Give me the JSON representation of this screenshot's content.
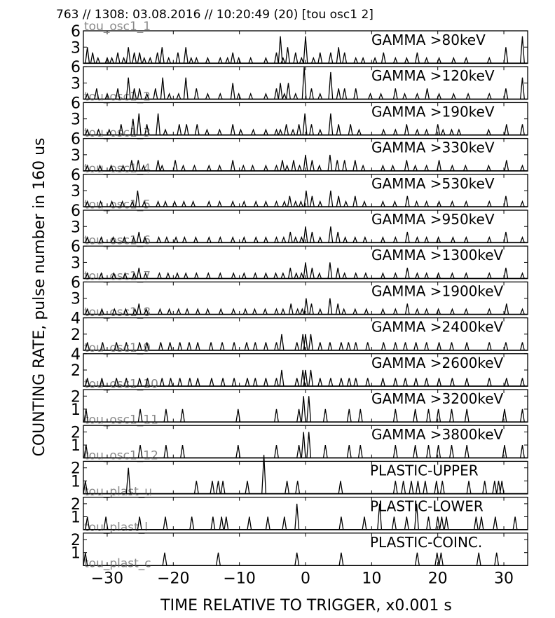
{
  "chart_data": {
    "type": "line",
    "title": "763 // 1308:   03.08.2016 // 10:20:49 (20)  [tou osc1 2]",
    "ylabel": "COUNTING RATE,    pulse number in 160 us",
    "xlabel": "TIME RELATIVE TO TRIGGER,   x0.001 s",
    "xlim": [
      -33.6,
      33.6
    ],
    "xticks": [
      -30,
      -20,
      -10,
      0,
      10,
      20,
      30
    ],
    "xtick_labels": [
      "−30",
      "−20",
      "−10",
      "0",
      "10",
      "20",
      "30"
    ],
    "grid": false,
    "panels": [
      {
        "id": "tou_osc1_1",
        "label": "GAMMA >80keV",
        "ylim": [
          0,
          6
        ],
        "yticks": [
          3,
          6
        ],
        "x": [
          -33,
          -32.2,
          -31.4,
          -30,
          -29.3,
          -28.4,
          -27.5,
          -26.8,
          -25.9,
          -25.1,
          -24.4,
          -23.5,
          -22.4,
          -21.7,
          -20.7,
          -19.3,
          -18.1,
          -17.3,
          -16.5,
          -14.8,
          -12.9,
          -11.8,
          -11.0,
          -10.1,
          -8.3,
          -6.0,
          -4.4,
          -3.8,
          -3.4,
          -2.7,
          -1.5,
          -0.6,
          0,
          1.2,
          2.2,
          3.8,
          5.0,
          5.9,
          7.6,
          8.7,
          10.5,
          11.8,
          13.6,
          15.3,
          16.9,
          18.3,
          20.2,
          22.4,
          24.3,
          27.8,
          30.3,
          32.8
        ],
        "y": [
          3,
          2,
          1,
          1,
          1,
          2,
          1,
          3,
          2,
          2,
          1,
          1,
          2,
          3,
          1,
          2,
          3,
          1,
          1,
          1,
          1,
          1,
          2,
          1,
          1,
          1,
          2,
          5,
          1,
          3,
          2,
          1,
          5,
          1,
          2,
          2,
          3,
          2,
          1,
          1,
          1,
          2,
          1,
          1,
          2,
          1,
          1,
          1,
          1,
          1,
          3,
          5
        ]
      },
      {
        "id": "tou_osc1_2",
        "label": "GAMMA >120keV",
        "ylim": [
          0,
          6
        ],
        "yticks": [
          3,
          6
        ],
        "x": [
          -33,
          -31.6,
          -30,
          -28.4,
          -26.8,
          -25.9,
          -25.1,
          -24.0,
          -22.7,
          -21.6,
          -20.6,
          -19.2,
          -18.1,
          -16.5,
          -14.8,
          -12.9,
          -11.0,
          -10.1,
          -8.3,
          -6.0,
          -4.4,
          -3.8,
          -3.2,
          -2.6,
          -1.5,
          -0.2,
          0.9,
          2.2,
          3.8,
          5.0,
          5.9,
          7.6,
          9.8,
          11.4,
          13.6,
          15.0,
          16.9,
          18.4,
          20.2,
          22.4,
          24.6,
          27.8,
          30.3,
          32.8
        ],
        "y": [
          1,
          2,
          1,
          2,
          4,
          2,
          2,
          1,
          2,
          4,
          1,
          1,
          4,
          2,
          1,
          1,
          3,
          1,
          1,
          1,
          2,
          3,
          1,
          3,
          1,
          6,
          2,
          1,
          5,
          2,
          2,
          2,
          1,
          1,
          2,
          1,
          1,
          2,
          1,
          1,
          1,
          1,
          2,
          4
        ]
      },
      {
        "id": "tou_osc1_3",
        "label": "GAMMA >190keV",
        "ylim": [
          0,
          6
        ],
        "yticks": [
          3,
          6
        ],
        "x": [
          -33,
          -31.3,
          -29.7,
          -27.9,
          -26.1,
          -25.2,
          -24.0,
          -22.3,
          -21.2,
          -19.1,
          -18.0,
          -16.4,
          -14.9,
          -13.0,
          -11.0,
          -9.8,
          -7.9,
          -6.0,
          -4.4,
          -3.8,
          -2.9,
          -1.9,
          -1.0,
          -0.1,
          0.9,
          2.2,
          3.8,
          5.0,
          6.8,
          8.1,
          11.8,
          13.6,
          15.3,
          16.9,
          18.3,
          20.0,
          20.8,
          22.1,
          23.2,
          27.7,
          30.4,
          32.8
        ],
        "y": [
          1,
          1,
          1,
          2,
          3,
          4,
          2,
          4,
          1,
          2,
          2,
          2,
          1,
          1,
          2,
          1,
          1,
          1,
          1,
          1,
          2,
          1,
          2,
          4,
          2,
          1,
          4,
          2,
          2,
          1,
          1,
          1,
          2,
          1,
          1,
          2,
          1,
          1,
          1,
          1,
          2,
          2
        ]
      },
      {
        "id": "tou_osc1_4",
        "label": "GAMMA >330keV",
        "ylim": [
          0,
          6
        ],
        "yticks": [
          3,
          6
        ],
        "x": [
          -33,
          -31.1,
          -29.4,
          -27.6,
          -26.3,
          -25.3,
          -24.5,
          -22.3,
          -21.7,
          -19.7,
          -18.5,
          -16.8,
          -14.6,
          -13.0,
          -11.0,
          -9.4,
          -8.0,
          -6.0,
          -4.4,
          -3.5,
          -2.8,
          -1.8,
          -0.9,
          0,
          1.0,
          2.1,
          3.7,
          4.8,
          5.9,
          7.5,
          8.7,
          11.7,
          13.2,
          15.3,
          16.6,
          18.3,
          20.2,
          22.2,
          24.2,
          27.7,
          30.4,
          32.8
        ],
        "y": [
          1,
          1,
          1,
          1,
          2,
          2,
          1,
          2,
          1,
          2,
          1,
          1,
          1,
          1,
          2,
          1,
          1,
          1,
          1,
          2,
          1,
          2,
          1,
          3,
          2,
          1,
          3,
          2,
          2,
          2,
          1,
          1,
          1,
          2,
          1,
          1,
          2,
          1,
          1,
          1,
          2,
          1
        ]
      },
      {
        "id": "tou_osc1_5",
        "label": "GAMMA >530keV",
        "ylim": [
          0,
          6
        ],
        "yticks": [
          3,
          6
        ],
        "x": [
          -33,
          -31.0,
          -29.3,
          -27.7,
          -26.2,
          -25.4,
          -24.4,
          -22.3,
          -21.2,
          -19.8,
          -18.4,
          -17.0,
          -14.6,
          -13.0,
          -11.0,
          -9.3,
          -7.5,
          -6.0,
          -4.4,
          -3.2,
          -2.4,
          -1.5,
          -0.7,
          0.1,
          1.0,
          2.2,
          3.8,
          5.0,
          6.1,
          7.5,
          8.9,
          11.7,
          13.5,
          15.4,
          16.8,
          18.3,
          20.2,
          22.2,
          24.3,
          27.8,
          30.3,
          32.8
        ],
        "y": [
          1,
          1,
          1,
          1,
          1,
          3,
          1,
          1,
          1,
          1,
          1,
          1,
          1,
          1,
          1,
          1,
          1,
          1,
          1,
          1,
          2,
          1,
          1,
          3,
          2,
          1,
          3,
          2,
          1,
          2,
          1,
          1,
          1,
          2,
          1,
          1,
          1,
          1,
          1,
          1,
          2,
          1
        ]
      },
      {
        "id": "tou_osc1_6",
        "label": "GAMMA >950keV",
        "ylim": [
          0,
          6
        ],
        "yticks": [
          3,
          6
        ],
        "x": [
          -33,
          -30.9,
          -29.1,
          -27.4,
          -26.0,
          -25.2,
          -24.3,
          -22.2,
          -21.0,
          -19.6,
          -18.3,
          -16.6,
          -14.6,
          -12.9,
          -11.0,
          -9.3,
          -7.5,
          -6.0,
          -4.4,
          -3.3,
          -2.3,
          -1.5,
          -0.6,
          0,
          1.0,
          2.2,
          3.8,
          4.9,
          6.0,
          7.5,
          9.0,
          11.7,
          13.6,
          15.4,
          16.9,
          18.3,
          20.1,
          22.3,
          24.3,
          27.8,
          30.3,
          32.8
        ],
        "y": [
          1,
          1,
          1,
          1,
          1,
          2,
          1,
          1,
          1,
          1,
          1,
          1,
          1,
          1,
          1,
          1,
          1,
          1,
          1,
          1,
          2,
          1,
          1,
          3,
          2,
          1,
          3,
          2,
          1,
          1,
          1,
          1,
          1,
          2,
          1,
          1,
          1,
          1,
          1,
          1,
          2,
          1
        ]
      },
      {
        "id": "tou_osc1_7",
        "label": "GAMMA >1300keV",
        "ylim": [
          0,
          6
        ],
        "yticks": [
          3,
          6
        ],
        "x": [
          -33,
          -30.9,
          -29.0,
          -27.3,
          -25.9,
          -25.2,
          -24.2,
          -22.1,
          -20.8,
          -19.4,
          -18.1,
          -16.5,
          -14.7,
          -12.9,
          -10.9,
          -9.3,
          -7.6,
          -6.0,
          -4.5,
          -3.4,
          -2.3,
          -1.4,
          -0.6,
          0,
          1.0,
          2.1,
          3.7,
          4.9,
          5.9,
          7.6,
          9.1,
          11.7,
          13.6,
          15.4,
          16.9,
          18.3,
          20.1,
          22.2,
          24.3,
          27.8,
          30.3,
          32.8
        ],
        "y": [
          1,
          1,
          1,
          1,
          1,
          2,
          1,
          1,
          1,
          1,
          1,
          1,
          1,
          1,
          1,
          1,
          1,
          1,
          1,
          1,
          2,
          1,
          1,
          3,
          2,
          1,
          3,
          2,
          1,
          1,
          1,
          1,
          1,
          2,
          1,
          1,
          1,
          1,
          1,
          1,
          2,
          1
        ]
      },
      {
        "id": "tou_osc1_8",
        "label": "GAMMA >1900keV",
        "ylim": [
          0,
          6
        ],
        "yticks": [
          3,
          6
        ],
        "x": [
          -33,
          -30.8,
          -28.9,
          -27.2,
          -25.8,
          -25.2,
          -24.1,
          -22.0,
          -20.6,
          -19.2,
          -17.9,
          -16.3,
          -14.8,
          -12.8,
          -10.9,
          -9.1,
          -7.7,
          -6.1,
          -4.4,
          -3.4,
          -2.2,
          -1.2,
          -0.5,
          0.1,
          0.9,
          2.2,
          3.7,
          4.9,
          5.8,
          7.5,
          9.2,
          11.7,
          13.6,
          15.4,
          16.9,
          18.3,
          20.1,
          22.2,
          24.3,
          27.8,
          30.4,
          32.8
        ],
        "y": [
          1,
          1,
          1,
          1,
          1,
          2,
          1,
          1,
          1,
          1,
          1,
          1,
          1,
          1,
          1,
          1,
          1,
          1,
          1,
          1,
          2,
          1,
          1,
          3,
          2,
          1,
          3,
          2,
          1,
          1,
          1,
          1,
          1,
          2,
          1,
          1,
          1,
          1,
          1,
          1,
          2,
          1
        ]
      },
      {
        "id": "tou_osc1_9",
        "label": "GAMMA >2400keV",
        "ylim": [
          0,
          4
        ],
        "yticks": [
          2,
          4
        ],
        "x": [
          -33,
          -30.7,
          -28.6,
          -27.1,
          -25.1,
          -24.0,
          -21.9,
          -20.5,
          -19.0,
          -17.6,
          -16.3,
          -14.3,
          -12.6,
          -10.8,
          -8.9,
          -7.6,
          -6.0,
          -4.4,
          -3.6,
          -1.3,
          -0.4,
          0,
          0.8,
          2.2,
          3.7,
          5.4,
          6.5,
          7.6,
          9.4,
          11.8,
          13.6,
          15.1,
          16.7,
          18.3,
          20.2,
          22.1,
          24.4,
          27.8,
          30.3,
          32.8
        ],
        "y": [
          1,
          1,
          1,
          1,
          1,
          1,
          1,
          1,
          1,
          1,
          1,
          1,
          1,
          1,
          1,
          1,
          1,
          1,
          2,
          1,
          2,
          2,
          2,
          1,
          1,
          1,
          1,
          1,
          1,
          1,
          1,
          1,
          1,
          1,
          1,
          1,
          1,
          1,
          1,
          1
        ]
      },
      {
        "id": "tou_osc1_10",
        "label": "GAMMA >2600keV",
        "ylim": [
          0,
          4
        ],
        "yticks": [
          2,
          4
        ],
        "x": [
          -33,
          -30.8,
          -28.6,
          -27.1,
          -25.1,
          -23.9,
          -21.7,
          -20.4,
          -19.0,
          -17.5,
          -16.3,
          -14.2,
          -12.5,
          -10.8,
          -8.8,
          -7.6,
          -6.0,
          -4.4,
          -3.6,
          -1.3,
          -0.4,
          0,
          0.8,
          2.2,
          3.8,
          5.4,
          6.6,
          7.6,
          9.4,
          11.7,
          13.6,
          15.1,
          16.7,
          18.3,
          20.2,
          22.2,
          24.4,
          27.8,
          30.4,
          32.8
        ],
        "y": [
          1,
          1,
          1,
          1,
          1,
          1,
          1,
          1,
          1,
          1,
          1,
          1,
          1,
          1,
          1,
          1,
          1,
          1,
          2,
          1,
          2,
          2,
          2,
          1,
          1,
          1,
          1,
          1,
          1,
          1,
          1,
          1,
          1,
          1,
          1,
          1,
          1,
          1,
          1,
          1
        ]
      },
      {
        "id": "tou_osc1_11",
        "label": "GAMMA >3200keV",
        "ylim": [
          0,
          2.5
        ],
        "yticks": [
          1,
          2
        ],
        "x": [
          -33.2,
          -25.0,
          -21.1,
          -18.6,
          -10.2,
          -4.4,
          -1.0,
          -0.3,
          0.5,
          3.0,
          6.6,
          8.3,
          13.6,
          16.6,
          18.6,
          20.1,
          22.1,
          24.4,
          30.1,
          32.8
        ],
        "y": [
          1,
          1,
          1,
          1,
          1,
          1,
          1,
          2,
          2,
          1,
          1,
          1,
          1,
          1,
          1,
          1,
          1,
          1,
          1,
          1
        ]
      },
      {
        "id": "tou_osc1_12",
        "label": "GAMMA >3800keV",
        "ylim": [
          0,
          2.5
        ],
        "yticks": [
          1,
          2
        ],
        "x": [
          -33.2,
          -25.0,
          -21.1,
          -18.6,
          -10.2,
          -4.4,
          -1.0,
          -0.3,
          0.5,
          3.0,
          6.6,
          8.3,
          13.6,
          16.6,
          18.6,
          20.1,
          22.1,
          24.4,
          30.1,
          32.8
        ],
        "y": [
          1,
          1,
          1,
          1,
          1,
          1,
          1,
          2,
          2,
          1,
          1,
          1,
          1,
          1,
          1,
          1,
          1,
          1,
          1,
          1
        ]
      },
      {
        "id": "tou_plast_u",
        "label": "PLASTIC-UPPER",
        "ylim": [
          0,
          2.5
        ],
        "yticks": [
          1,
          2
        ],
        "x": [
          -33.3,
          -26.8,
          -16.5,
          -14.1,
          -13.2,
          -12.5,
          -8.8,
          -6.3,
          -2.8,
          -1.2,
          5.3,
          13.6,
          14.8,
          16.0,
          17.0,
          18.1,
          19.8,
          20.7,
          24.7,
          27.1,
          28.6,
          29.2,
          29.7
        ],
        "y": [
          1,
          2,
          1,
          1,
          1,
          1,
          1,
          3,
          1,
          1,
          1,
          1,
          1,
          1,
          1,
          1,
          1,
          1,
          1,
          1,
          1,
          1,
          1
        ]
      },
      {
        "id": "tou_plast_l",
        "label": "PLASTIC-LOWER",
        "ylim": [
          0,
          2.5
        ],
        "yticks": [
          1,
          2
        ],
        "x": [
          -33.0,
          -30.2,
          -25.1,
          -21.2,
          -17.2,
          -14.0,
          -12.7,
          -12.0,
          -8.5,
          -5.7,
          -3.2,
          -1.3,
          5.4,
          8.9,
          11.2,
          13.4,
          15.3,
          16.8,
          18.6,
          20.0,
          20.6,
          21.3,
          25.8,
          26.6,
          28.7,
          31.7
        ],
        "y": [
          1,
          1,
          1,
          1,
          1,
          1,
          1,
          1,
          1,
          1,
          1,
          2,
          1,
          1,
          2,
          1,
          1,
          2,
          1,
          1,
          1,
          1,
          1,
          1,
          1,
          1
        ]
      },
      {
        "id": "tou_plast_c",
        "label": "PLASTIC-COINC.",
        "ylim": [
          0,
          2.5
        ],
        "yticks": [
          1,
          2
        ],
        "x": [
          -33.3,
          -21.3,
          -13.2,
          -1.3,
          5.4,
          16.9,
          19.9,
          20.5,
          26.2,
          28.9
        ],
        "y": [
          1,
          1,
          1,
          1,
          1,
          1,
          1,
          1,
          1,
          1
        ]
      }
    ]
  }
}
